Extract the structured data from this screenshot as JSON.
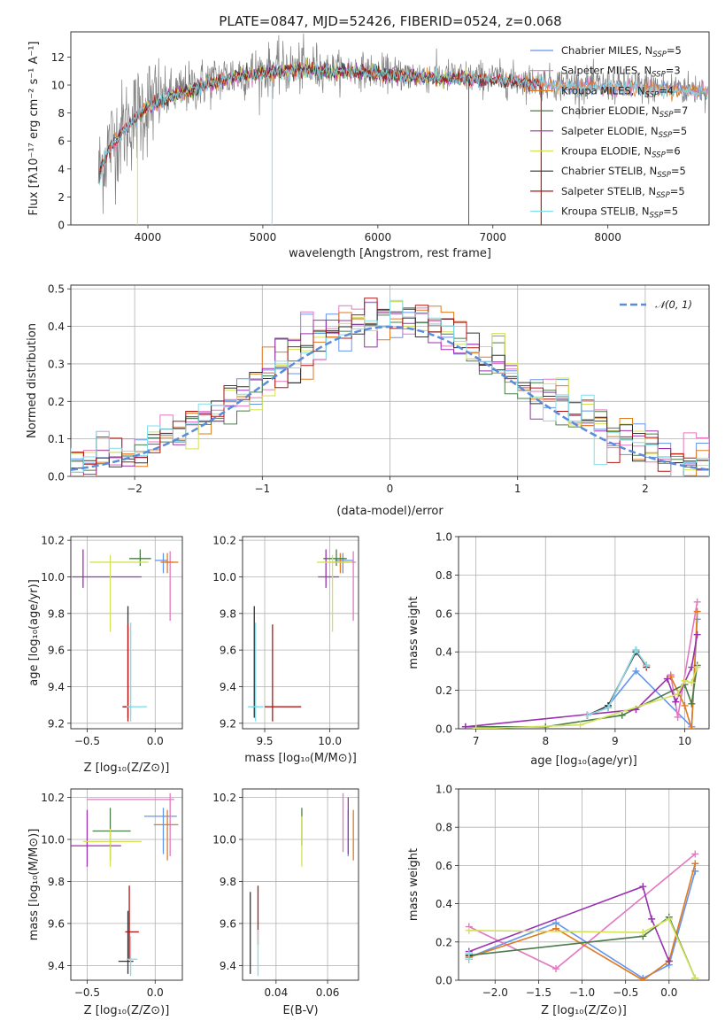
{
  "title": "PLATE=0847, MJD=52426, FIBERID=0524, z=0.068",
  "colors": {
    "Chabrier MILES": "#6495ed",
    "Salpeter MILES": "#e377c2",
    "Kroupa MILES": "#e07a1f",
    "Chabrier ELODIE": "#4a7c4a",
    "Salpeter ELODIE": "#9b30b0",
    "Kroupa ELODIE": "#d4e157",
    "Chabrier STELIB": "#333333",
    "Salpeter STELIB": "#b01515",
    "Kroupa STELIB": "#80deea",
    "data": "#808080"
  },
  "chart_data": [
    {
      "id": "spectrum",
      "type": "line",
      "title": "PLATE=0847, MJD=52426, FIBERID=0524, z=0.068",
      "xlabel": "wavelength [Angstrom, rest frame]",
      "ylabel": "Flux [fλ10⁻¹⁷ erg cm⁻² s⁻¹ A⁻¹]",
      "xlim": [
        3330,
        8880
      ],
      "ylim": [
        0,
        13.8
      ],
      "xticks": [
        4000,
        5000,
        6000,
        7000,
        8000
      ],
      "yticks": [
        0,
        2,
        4,
        6,
        8,
        10,
        12
      ],
      "grid": false,
      "legend": "upper right",
      "data_continuum": [
        [
          3570,
          3.5
        ],
        [
          3650,
          5.5
        ],
        [
          3800,
          7.0
        ],
        [
          4000,
          8.6
        ],
        [
          4200,
          9.3
        ],
        [
          4500,
          10.2
        ],
        [
          4800,
          10.8
        ],
        [
          5100,
          11.1
        ],
        [
          5400,
          11.2
        ],
        [
          5800,
          11.1
        ],
        [
          6200,
          10.8
        ],
        [
          6600,
          10.6
        ],
        [
          7000,
          10.5
        ],
        [
          7400,
          10.2
        ],
        [
          7800,
          10.0
        ],
        [
          8300,
          9.9
        ],
        [
          8800,
          9.7
        ]
      ],
      "series": [
        {
          "name": "Chabrier MILES, N$_{SSP}$=5",
          "legend": "Chabrier MILES, N",
          "ssp": 5
        },
        {
          "name": "Salpeter MILES, N$_{SSP}$=3",
          "legend": "Salpeter MILES, N",
          "ssp": 3
        },
        {
          "name": "Kroupa MILES, N$_{SSP}$=4",
          "legend": "Kroupa MILES, N",
          "ssp": 4
        },
        {
          "name": "Chabrier ELODIE, N$_{SSP}$=7",
          "legend": "Chabrier ELODIE, N",
          "ssp": 7
        },
        {
          "name": "Salpeter ELODIE, N$_{SSP}$=5",
          "legend": "Salpeter ELODIE, N",
          "ssp": 5
        },
        {
          "name": "Kroupa ELODIE, N$_{SSP}$=6",
          "legend": "Kroupa ELODIE, N",
          "ssp": 6
        },
        {
          "name": "Chabrier STELIB, N$_{SSP}$=5",
          "legend": "Chabrier STELIB, N",
          "ssp": 5
        },
        {
          "name": "Salpeter STELIB, N$_{SSP}$=5",
          "legend": "Salpeter STELIB, N",
          "ssp": 5
        },
        {
          "name": "Kroupa STELIB, N$_{SSP}$=5",
          "legend": "Kroupa STELIB, N",
          "ssp": 5
        }
      ]
    },
    {
      "id": "residuals",
      "type": "line",
      "xlabel": "(data-model)/error",
      "ylabel": "Normed distribution",
      "xlim": [
        -2.5,
        2.5
      ],
      "ylim": [
        0,
        0.51
      ],
      "xticks": [
        -2,
        -1,
        0,
        1,
        2
      ],
      "xticklabels": [
        "−2",
        "−1",
        "0",
        "1",
        "2"
      ],
      "yticks": [
        0.0,
        0.1,
        0.2,
        0.3,
        0.4,
        0.5
      ],
      "yticklabels": [
        "0.0",
        "0.1",
        "0.2",
        "0.3",
        "0.4",
        "0.5"
      ],
      "grid": true,
      "legend": "upper right",
      "legend_label": "𝒩(0, 1)",
      "bin_width": 0.1
    },
    {
      "id": "age-vs-Z",
      "type": "scatter",
      "xlabel": "Z [log₁₀(Z/Z⊙)]",
      "ylabel": "age  [log₁₀(age/yr)]",
      "xlim": [
        -0.62,
        0.2
      ],
      "ylim": [
        9.17,
        10.22
      ],
      "xticks": [
        -0.5,
        0.0
      ],
      "xticklabels": [
        "−0.5",
        "0.0"
      ],
      "yticks": [
        9.2,
        9.4,
        9.6,
        9.8,
        10.0,
        10.2
      ],
      "yticklabels": [
        "9.2",
        "9.4",
        "9.6",
        "9.8",
        "10.0",
        "10.2"
      ],
      "grid": true,
      "points": [
        {
          "x": 0.06,
          "y": 10.09,
          "xerr": [
            0.06,
            0.03
          ],
          "yerr": [
            0.07,
            0.04
          ],
          "c": "Chabrier MILES"
        },
        {
          "x": 0.11,
          "y": 10.08,
          "xerr": [
            0.04,
            0.02
          ],
          "yerr": [
            0.32,
            0.06
          ],
          "c": "Salpeter MILES"
        },
        {
          "x": 0.09,
          "y": 10.08,
          "xerr": [
            0.05,
            0.08
          ],
          "yerr": [
            0.06,
            0.05
          ],
          "c": "Kroupa MILES"
        },
        {
          "x": -0.11,
          "y": 10.1,
          "xerr": [
            0.08,
            0.08
          ],
          "yerr": [
            0.04,
            0.05
          ],
          "c": "Chabrier ELODIE"
        },
        {
          "x": -0.53,
          "y": 10.0,
          "xerr": [
            0.08,
            0.43
          ],
          "yerr": [
            0.06,
            0.15
          ],
          "c": "Salpeter ELODIE"
        },
        {
          "x": -0.33,
          "y": 10.08,
          "xerr": [
            0.15,
            0.28
          ],
          "yerr": [
            0.38,
            0.04
          ],
          "c": "Kroupa ELODIE"
        },
        {
          "x": -0.2,
          "y": 9.29,
          "xerr": [
            0.04,
            0.02
          ],
          "yerr": [
            0.06,
            0.55
          ],
          "c": "Chabrier STELIB"
        },
        {
          "x": -0.2,
          "y": 9.29,
          "xerr": [
            0.03,
            0.03
          ],
          "yerr": [
            0.08,
            0.45
          ],
          "c": "Salpeter STELIB"
        },
        {
          "x": -0.18,
          "y": 9.29,
          "xerr": [
            0.03,
            0.12
          ],
          "yerr": [
            0.08,
            0.46
          ],
          "c": "Kroupa STELIB"
        }
      ]
    },
    {
      "id": "age-vs-mass",
      "type": "scatter",
      "xlabel": "mass [log₁₀(M/M⊙)]",
      "ylabel": "",
      "xlim": [
        9.33,
        10.22
      ],
      "ylim": [
        9.17,
        10.22
      ],
      "xticks": [
        9.5,
        10.0
      ],
      "xticklabels": [
        "9.5",
        "10.0"
      ],
      "yticks": [
        9.2,
        9.4,
        9.6,
        9.8,
        10.0,
        10.2
      ],
      "yticklabels": [
        "9.2",
        "9.4",
        "9.6",
        "9.8",
        "10.0",
        "10.2"
      ],
      "grid": true,
      "points": [
        {
          "x": 10.1,
          "y": 10.09,
          "xerr": [
            0.06,
            0.08
          ],
          "yerr": [
            0.07,
            0.04
          ],
          "c": "Chabrier MILES"
        },
        {
          "x": 10.18,
          "y": 10.08,
          "xerr": [
            0.03,
            0.02
          ],
          "yerr": [
            0.32,
            0.06
          ],
          "c": "Salpeter MILES"
        },
        {
          "x": 10.08,
          "y": 10.08,
          "xerr": [
            0.08,
            0.07
          ],
          "yerr": [
            0.06,
            0.05
          ],
          "c": "Kroupa MILES"
        },
        {
          "x": 10.05,
          "y": 10.1,
          "xerr": [
            0.1,
            0.08
          ],
          "yerr": [
            0.04,
            0.05
          ],
          "c": "Chabrier ELODIE"
        },
        {
          "x": 9.97,
          "y": 10.0,
          "xerr": [
            0.06,
            0.1
          ],
          "yerr": [
            0.06,
            0.15
          ],
          "c": "Salpeter ELODIE"
        },
        {
          "x": 10.02,
          "y": 10.08,
          "xerr": [
            0.12,
            0.15
          ],
          "yerr": [
            0.38,
            0.04
          ],
          "c": "Kroupa ELODIE"
        },
        {
          "x": 9.42,
          "y": 9.29,
          "xerr": [
            0.02,
            0.02
          ],
          "yerr": [
            0.06,
            0.55
          ],
          "c": "Chabrier STELIB"
        },
        {
          "x": 9.56,
          "y": 9.29,
          "xerr": [
            0.06,
            0.22
          ],
          "yerr": [
            0.08,
            0.45
          ],
          "c": "Salpeter STELIB"
        },
        {
          "x": 9.43,
          "y": 9.29,
          "xerr": [
            0.06,
            0.06
          ],
          "yerr": [
            0.08,
            0.46
          ],
          "c": "Kroupa STELIB"
        }
      ]
    },
    {
      "id": "mass-weight-vs-age",
      "type": "line",
      "xlabel": "age  [log₁₀(age/yr)]",
      "ylabel": "mass weight",
      "xlim": [
        6.75,
        10.35
      ],
      "ylim": [
        0.0,
        1.0
      ],
      "xticks": [
        7,
        8,
        9,
        10
      ],
      "yticks": [
        0.0,
        0.2,
        0.4,
        0.6,
        0.8,
        1.0
      ],
      "yticklabels": [
        "0.0",
        "0.2",
        "0.4",
        "0.6",
        "0.8",
        "1.0"
      ],
      "grid": true,
      "series": [
        {
          "c": "Chabrier MILES",
          "x": [
            8.9,
            9.3,
            10.1,
            10.18
          ],
          "y": [
            0.12,
            0.3,
            0.01,
            0.57
          ]
        },
        {
          "c": "Salpeter MILES",
          "x": [
            9.8,
            9.9,
            10.18
          ],
          "y": [
            0.28,
            0.06,
            0.66
          ]
        },
        {
          "c": "Kroupa MILES",
          "x": [
            9.8,
            10.0,
            10.1,
            10.18
          ],
          "y": [
            0.27,
            0.12,
            0.0,
            0.61
          ]
        },
        {
          "c": "Chabrier ELODIE",
          "x": [
            6.85,
            8.0,
            9.1,
            10.0,
            10.1,
            10.18
          ],
          "y": [
            0.01,
            0.01,
            0.07,
            0.23,
            0.13,
            0.33
          ]
        },
        {
          "c": "Salpeter ELODIE",
          "x": [
            6.85,
            9.3,
            9.75,
            9.87,
            10.1,
            10.18
          ],
          "y": [
            0.01,
            0.1,
            0.26,
            0.14,
            0.32,
            0.49
          ]
        },
        {
          "c": "Kroupa ELODIE",
          "x": [
            7.0,
            8.5,
            9.9,
            10.0,
            10.1,
            10.18
          ],
          "y": [
            0.0,
            0.02,
            0.18,
            0.25,
            0.24,
            0.32
          ]
        },
        {
          "c": "Chabrier STELIB",
          "x": [
            8.6,
            8.9,
            9.3,
            9.45
          ],
          "y": [
            0.07,
            0.12,
            0.4,
            0.33
          ]
        },
        {
          "c": "Salpeter STELIB",
          "x": [
            8.6,
            8.9,
            9.3,
            9.45
          ],
          "y": [
            0.07,
            0.11,
            0.41,
            0.32
          ]
        },
        {
          "c": "Kroupa STELIB",
          "x": [
            8.6,
            8.9,
            9.3,
            9.45
          ],
          "y": [
            0.07,
            0.11,
            0.41,
            0.33
          ]
        }
      ]
    },
    {
      "id": "mass-vs-Z",
      "type": "scatter",
      "xlabel": "Z [log₁₀(Z/Z⊙)]",
      "ylabel": "mass [log₁₀(M/M⊙)]",
      "xlim": [
        -0.62,
        0.2
      ],
      "ylim": [
        9.33,
        10.24
      ],
      "xticks": [
        -0.5,
        0.0
      ],
      "xticklabels": [
        "−0.5",
        "0.0"
      ],
      "yticks": [
        9.4,
        9.6,
        9.8,
        10.0,
        10.2
      ],
      "yticklabels": [
        "9.4",
        "9.6",
        "9.8",
        "10.0",
        "10.2"
      ],
      "grid": true,
      "points": [
        {
          "x": 0.06,
          "y": 10.11,
          "xerr": [
            0.14,
            0.1
          ],
          "yerr": [
            0.18,
            0.04
          ],
          "c": "Chabrier MILES"
        },
        {
          "x": 0.11,
          "y": 10.19,
          "xerr": [
            0.61,
            0.03
          ],
          "yerr": [
            0.27,
            0.03
          ],
          "c": "Salpeter MILES"
        },
        {
          "x": 0.09,
          "y": 10.07,
          "xerr": [
            0.1,
            0.08
          ],
          "yerr": [
            0.17,
            0.07
          ],
          "c": "Kroupa MILES"
        },
        {
          "x": -0.33,
          "y": 10.04,
          "xerr": [
            0.13,
            0.15
          ],
          "yerr": [
            0.14,
            0.11
          ],
          "c": "Chabrier ELODIE"
        },
        {
          "x": -0.5,
          "y": 9.97,
          "xerr": [
            0.12,
            0.25
          ],
          "yerr": [
            0.1,
            0.17
          ],
          "c": "Salpeter ELODIE"
        },
        {
          "x": -0.33,
          "y": 9.99,
          "xerr": [
            0.2,
            0.23
          ],
          "yerr": [
            0.12,
            0.06
          ],
          "c": "Kroupa ELODIE"
        },
        {
          "x": -0.2,
          "y": 9.42,
          "xerr": [
            0.07,
            0.04
          ],
          "yerr": [
            0.06,
            0.24
          ],
          "c": "Chabrier STELIB"
        },
        {
          "x": -0.19,
          "y": 9.56,
          "xerr": [
            0.03,
            0.07
          ],
          "yerr": [
            0.13,
            0.22
          ],
          "c": "Salpeter STELIB"
        },
        {
          "x": -0.18,
          "y": 9.43,
          "xerr": [
            0.03,
            0.05
          ],
          "yerr": [
            0.08,
            0.11
          ],
          "c": "Kroupa STELIB"
        }
      ]
    },
    {
      "id": "mass-vs-EBV",
      "type": "scatter",
      "xlabel": "E(B-V)",
      "ylabel": "",
      "xlim": [
        0.027,
        0.072
      ],
      "ylim": [
        9.33,
        10.24
      ],
      "xticks": [
        0.04,
        0.06
      ],
      "xticklabels": [
        "0.04",
        "0.06"
      ],
      "yticks": [
        9.4,
        9.6,
        9.8,
        10.0,
        10.2
      ],
      "yticklabels": [
        "9.4",
        "9.6",
        "9.8",
        "10.0",
        "10.2"
      ],
      "grid": true,
      "points": [
        {
          "x": 0.068,
          "y": 10.09,
          "yerr": [
            0.17,
            0.05
          ],
          "c": "Chabrier MILES"
        },
        {
          "x": 0.066,
          "y": 10.12,
          "yerr": [
            0.18,
            0.1
          ],
          "c": "Salpeter MILES"
        },
        {
          "x": 0.07,
          "y": 10.02,
          "yerr": [
            0.12,
            0.12
          ],
          "c": "Kroupa MILES"
        },
        {
          "x": 0.05,
          "y": 10.07,
          "yerr": [
            0.1,
            0.08
          ],
          "c": "Chabrier ELODIE"
        },
        {
          "x": 0.068,
          "y": 10.05,
          "yerr": [
            0.12,
            0.15
          ],
          "c": "Salpeter ELODIE"
        },
        {
          "x": 0.05,
          "y": 9.98,
          "yerr": [
            0.11,
            0.13
          ],
          "c": "Kroupa ELODIE"
        },
        {
          "x": 0.03,
          "y": 9.55,
          "yerr": [
            0.19,
            0.2
          ],
          "c": "Chabrier STELIB"
        },
        {
          "x": 0.033,
          "y": 9.6,
          "yerr": [
            0.1,
            0.18
          ],
          "c": "Salpeter STELIB"
        },
        {
          "x": 0.033,
          "y": 9.45,
          "yerr": [
            0.1,
            0.12
          ],
          "c": "Kroupa STELIB"
        }
      ]
    },
    {
      "id": "mass-weight-vs-Z",
      "type": "line",
      "xlabel": "Z [log₁₀(Z/Z⊙)]",
      "ylabel": "mass weight",
      "xlim": [
        -2.42,
        0.46
      ],
      "ylim": [
        0.0,
        1.0
      ],
      "xticks": [
        -2.0,
        -1.5,
        -1.0,
        -0.5,
        0.0
      ],
      "xticklabels": [
        "−2.0",
        "−1.5",
        "−1.0",
        "−0.5",
        "0.0"
      ],
      "yticks": [
        0.0,
        0.2,
        0.4,
        0.6,
        0.8,
        1.0
      ],
      "yticklabels": [
        "0.0",
        "0.2",
        "0.4",
        "0.6",
        "0.8",
        "1.0"
      ],
      "grid": true,
      "series": [
        {
          "c": "Chabrier MILES",
          "x": [
            -2.3,
            -1.3,
            -0.3,
            0.0,
            0.3
          ],
          "y": [
            0.12,
            0.3,
            0.01,
            0.08,
            0.57
          ]
        },
        {
          "c": "Salpeter MILES",
          "x": [
            -2.3,
            -1.3,
            0.3
          ],
          "y": [
            0.28,
            0.06,
            0.66
          ]
        },
        {
          "c": "Kroupa MILES",
          "x": [
            -2.3,
            -1.3,
            -0.3,
            0.0,
            0.3
          ],
          "y": [
            0.12,
            0.27,
            0.0,
            0.1,
            0.61
          ]
        },
        {
          "c": "Chabrier ELODIE",
          "x": [
            -2.3,
            -0.3,
            0.0,
            0.3
          ],
          "y": [
            0.13,
            0.23,
            0.33,
            0.01
          ]
        },
        {
          "c": "Salpeter ELODIE",
          "x": [
            -2.3,
            -0.3,
            -0.2,
            0.0
          ],
          "y": [
            0.15,
            0.49,
            0.32,
            0.1
          ]
        },
        {
          "c": "Kroupa ELODIE",
          "x": [
            -2.3,
            -0.3,
            0.0,
            0.3
          ],
          "y": [
            0.26,
            0.25,
            0.32,
            0.01
          ]
        },
        {
          "c": "Chabrier STELIB",
          "x": [
            -2.3,
            -2.3
          ],
          "y": [
            0.11,
            0.13
          ]
        },
        {
          "c": "Salpeter STELIB",
          "x": [
            -2.3,
            -2.3
          ],
          "y": [
            0.11,
            0.14
          ]
        },
        {
          "c": "Kroupa STELIB",
          "x": [
            -2.3,
            -2.3
          ],
          "y": [
            0.11,
            0.14
          ]
        }
      ]
    }
  ]
}
